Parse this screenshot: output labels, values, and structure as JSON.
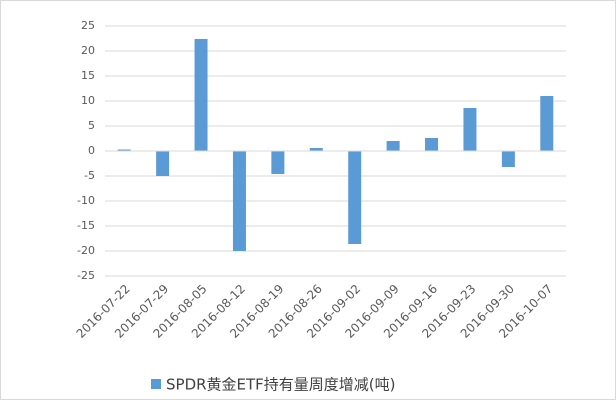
{
  "chart_data": {
    "type": "bar",
    "categories": [
      "2016-07-22",
      "2016-07-29",
      "2016-08-05",
      "2016-08-12",
      "2016-08-19",
      "2016-08-26",
      "2016-09-02",
      "2016-09-09",
      "2016-09-16",
      "2016-09-23",
      "2016-09-30",
      "2016-10-07"
    ],
    "series": [
      {
        "name": "SPDR黄金ETF持有量周度增减(吨)",
        "color": "#5b9bd5",
        "values": [
          0.3,
          -5,
          22.4,
          -20,
          -4.6,
          0.6,
          -18.6,
          2,
          2.6,
          8.6,
          -3.2,
          11
        ]
      }
    ],
    "ylim": [
      -25,
      25
    ],
    "yticks": [
      -25,
      -20,
      -15,
      -10,
      -5,
      0,
      5,
      10,
      15,
      20,
      25
    ],
    "grid": true,
    "legend": "bottom"
  }
}
